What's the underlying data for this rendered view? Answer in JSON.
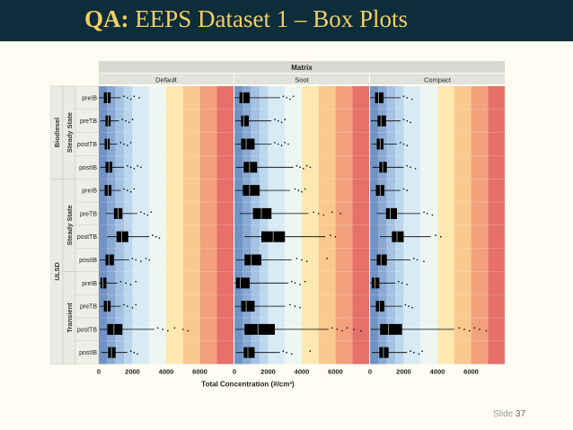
{
  "slide": {
    "title_prefix": "QA:",
    "title_rest": "EEPS Dataset 1 – Box Plots",
    "slide_label": "Slide",
    "slide_number": "37"
  },
  "colors": {
    "title_bar": "#0d2d3a",
    "title_text": "#f2ce63",
    "slide_bg": "#fffdf3"
  },
  "chart_data": {
    "type": "box",
    "title": "Matrix",
    "xlabel": "Total Concentration (#/cm³)",
    "ylabel": "",
    "xlim": [
      0,
      8000
    ],
    "x_ticks": [
      0,
      2000,
      4000,
      6000
    ],
    "panels": [
      "Default",
      "Soot",
      "Compact"
    ],
    "groups": [
      {
        "fuel": "Biodiesel",
        "condition": "Steady State",
        "rows": [
          "preIB",
          "preTB",
          "postTB",
          "postIB"
        ]
      },
      {
        "fuel": "ULSD",
        "condition": "Steady State",
        "rows": [
          "preIB",
          "preTB",
          "postTB",
          "postIB"
        ]
      },
      {
        "fuel": "ULSD",
        "condition": "Transient",
        "rows": [
          "preIB",
          "preTB",
          "postTB",
          "postIB"
        ]
      }
    ],
    "background_bands": [
      {
        "from": 0,
        "to": 500,
        "color": "#6f93c4"
      },
      {
        "from": 500,
        "to": 1000,
        "color": "#8aa9d2"
      },
      {
        "from": 1000,
        "to": 1500,
        "color": "#a6c2e2"
      },
      {
        "from": 1500,
        "to": 2000,
        "color": "#bcd6ec"
      },
      {
        "from": 2000,
        "to": 3000,
        "color": "#d8ebf4"
      },
      {
        "from": 3000,
        "to": 4000,
        "color": "#eef6f4"
      },
      {
        "from": 4000,
        "to": 5000,
        "color": "#fde9b0"
      },
      {
        "from": 5000,
        "to": 6000,
        "color": "#f9c98d"
      },
      {
        "from": 6000,
        "to": 7000,
        "color": "#f2a17a"
      },
      {
        "from": 7000,
        "to": 8000,
        "color": "#e7706b"
      }
    ],
    "boxes": {
      "Default": [
        {
          "q1": 300,
          "med": 500,
          "q3": 700,
          "wlo": 0,
          "whi": 1300,
          "out": [
            1500,
            1700,
            1900,
            2100,
            2400
          ]
        },
        {
          "q1": 400,
          "med": 550,
          "q3": 700,
          "wlo": 100,
          "whi": 1200,
          "out": [
            1400,
            1600,
            1800,
            2000
          ]
        },
        {
          "q1": 350,
          "med": 500,
          "q3": 650,
          "wlo": 50,
          "whi": 1100,
          "out": [
            1300,
            1500,
            1700,
            1900
          ]
        },
        {
          "q1": 400,
          "med": 600,
          "q3": 800,
          "wlo": 100,
          "whi": 1500,
          "out": [
            1700,
            1900,
            2100,
            2300,
            2500
          ]
        },
        {
          "q1": 350,
          "med": 550,
          "q3": 750,
          "wlo": 50,
          "whi": 1300,
          "out": [
            1500,
            1700,
            1900,
            2100
          ]
        },
        {
          "q1": 900,
          "med": 1150,
          "q3": 1400,
          "wlo": 400,
          "whi": 2300,
          "out": [
            2500,
            2700,
            2900,
            3100
          ]
        },
        {
          "q1": 1050,
          "med": 1350,
          "q3": 1750,
          "wlo": 500,
          "whi": 3000,
          "out": [
            3200,
            3400,
            3600
          ]
        },
        {
          "q1": 400,
          "med": 600,
          "q3": 900,
          "wlo": 50,
          "whi": 1800,
          "out": [
            2000,
            2200,
            2500,
            2800,
            3000
          ]
        },
        {
          "q1": 100,
          "med": 250,
          "q3": 450,
          "wlo": 0,
          "whi": 1100,
          "out": [
            1300,
            1600,
            1900,
            2200
          ]
        },
        {
          "q1": 300,
          "med": 500,
          "q3": 700,
          "wlo": 50,
          "whi": 1300,
          "out": [
            1500,
            1700,
            2000,
            2200
          ]
        },
        {
          "q1": 500,
          "med": 900,
          "q3": 1400,
          "wlo": 50,
          "whi": 3300,
          "out": [
            3500,
            3800,
            4100,
            4500,
            5000,
            5300
          ]
        },
        {
          "q1": 550,
          "med": 750,
          "q3": 1000,
          "wlo": 150,
          "whi": 1700,
          "out": [
            1900,
            2100,
            2300
          ]
        }
      ],
      "Soot": [
        {
          "q1": 300,
          "med": 500,
          "q3": 900,
          "wlo": 0,
          "whi": 2700,
          "out": [
            2900,
            3100,
            3300,
            3500
          ]
        },
        {
          "q1": 400,
          "med": 550,
          "q3": 850,
          "wlo": 50,
          "whi": 2200,
          "out": [
            2400,
            2600,
            2800,
            3000
          ]
        },
        {
          "q1": 400,
          "med": 700,
          "q3": 1200,
          "wlo": 50,
          "whi": 2200,
          "out": [
            2400,
            2600,
            2800,
            3000,
            3200
          ]
        },
        {
          "q1": 550,
          "med": 900,
          "q3": 1350,
          "wlo": 100,
          "whi": 3500,
          "out": [
            3700,
            3900,
            4100,
            4300,
            4500
          ]
        },
        {
          "q1": 500,
          "med": 900,
          "q3": 1500,
          "wlo": 50,
          "whi": 3300,
          "out": [
            3600,
            3800,
            4000,
            4200
          ]
        },
        {
          "q1": 1100,
          "med": 1600,
          "q3": 2200,
          "wlo": 300,
          "whi": 4400,
          "out": [
            4700,
            5000,
            5300,
            5800,
            6300
          ]
        },
        {
          "q1": 1600,
          "med": 2300,
          "q3": 3000,
          "wlo": 600,
          "whi": 5400,
          "out": [
            5700,
            6000
          ]
        },
        {
          "q1": 600,
          "med": 1000,
          "q3": 1600,
          "wlo": 100,
          "whi": 3400,
          "out": [
            3700,
            4000,
            4300,
            5500
          ]
        },
        {
          "q1": 100,
          "med": 350,
          "q3": 900,
          "wlo": 0,
          "whi": 3200,
          "out": [
            3400,
            3600,
            3900,
            4200
          ]
        },
        {
          "q1": 400,
          "med": 700,
          "q3": 1200,
          "wlo": 50,
          "whi": 3000,
          "out": [
            3300,
            3600,
            3900
          ]
        },
        {
          "q1": 600,
          "med": 1400,
          "q3": 2400,
          "wlo": 50,
          "whi": 5600,
          "out": [
            5800,
            6100,
            6400,
            6700,
            7100,
            7500
          ]
        },
        {
          "q1": 550,
          "med": 800,
          "q3": 1200,
          "wlo": 100,
          "whi": 2700,
          "out": [
            2900,
            3100,
            3400,
            4500
          ]
        }
      ],
      "Compact": [
        {
          "q1": 300,
          "med": 500,
          "q3": 800,
          "wlo": 0,
          "whi": 1800,
          "out": [
            2000,
            2200,
            2500
          ]
        },
        {
          "q1": 450,
          "med": 650,
          "q3": 950,
          "wlo": 50,
          "whi": 1800,
          "out": [
            2000,
            2200,
            2400
          ]
        },
        {
          "q1": 400,
          "med": 600,
          "q3": 800,
          "wlo": 100,
          "whi": 1600,
          "out": [
            1800,
            2000,
            2200
          ]
        },
        {
          "q1": 550,
          "med": 750,
          "q3": 1000,
          "wlo": 150,
          "whi": 2000,
          "out": [
            2200,
            2400,
            2700
          ]
        },
        {
          "q1": 350,
          "med": 600,
          "q3": 850,
          "wlo": 50,
          "whi": 1800,
          "out": [
            2000,
            2200
          ]
        },
        {
          "q1": 950,
          "med": 1200,
          "q3": 1600,
          "wlo": 400,
          "whi": 3000,
          "out": [
            3200,
            3400,
            3700
          ]
        },
        {
          "q1": 1300,
          "med": 1600,
          "q3": 2000,
          "wlo": 600,
          "whi": 3600,
          "out": [
            3900,
            4200
          ]
        },
        {
          "q1": 400,
          "med": 650,
          "q3": 1000,
          "wlo": 50,
          "whi": 2400,
          "out": [
            2600,
            2800,
            3200
          ]
        },
        {
          "q1": 100,
          "med": 300,
          "q3": 550,
          "wlo": 0,
          "whi": 1500,
          "out": [
            1700,
            1900,
            2200
          ]
        },
        {
          "q1": 350,
          "med": 550,
          "q3": 850,
          "wlo": 50,
          "whi": 1900,
          "out": [
            2100,
            2300,
            2500
          ]
        },
        {
          "q1": 600,
          "med": 1100,
          "q3": 1900,
          "wlo": 50,
          "whi": 5000,
          "out": [
            5300,
            5600,
            5900,
            6200,
            6500,
            6900
          ]
        },
        {
          "q1": 550,
          "med": 800,
          "q3": 1100,
          "wlo": 100,
          "whi": 2200,
          "out": [
            2400,
            2600,
            2900,
            3100
          ]
        }
      ]
    }
  }
}
